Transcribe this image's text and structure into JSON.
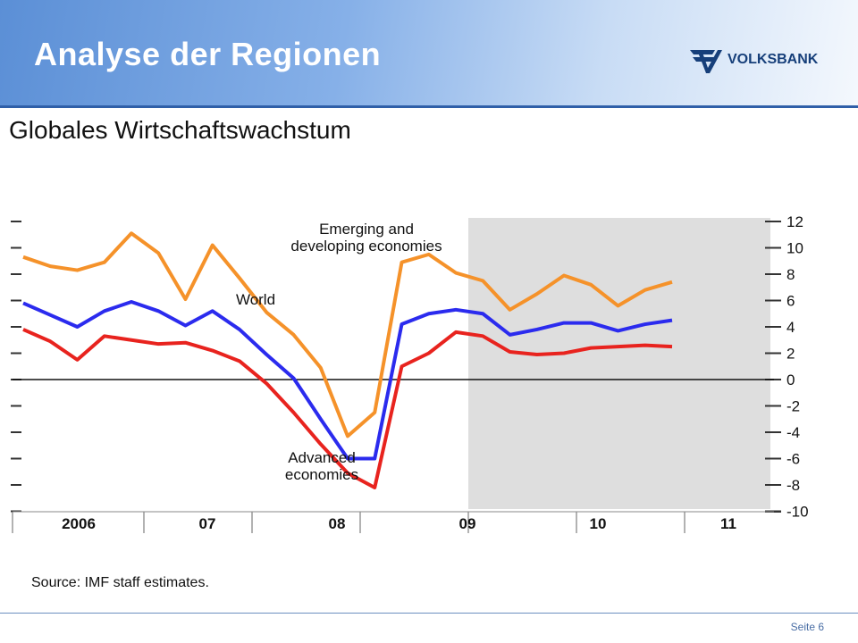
{
  "slide": {
    "title": "Analyse der Regionen",
    "subtitle": "Globales Wirtschaftswachstum",
    "logo_text": "VOLKSBANK",
    "page_label": "Seite 6"
  },
  "chart_data": {
    "type": "line",
    "title": "",
    "xlabel": "",
    "ylabel": "",
    "x_tick_labels": [
      "2006",
      "07",
      "08",
      "09",
      "10",
      "11"
    ],
    "y_ticks": [
      12,
      10,
      8,
      6,
      4,
      2,
      0,
      -2,
      -4,
      -6,
      -8,
      -10
    ],
    "ylim": [
      -10,
      12
    ],
    "x": [
      "2005Q4",
      "2006Q1",
      "2006Q2",
      "2006Q3",
      "2006Q4",
      "2007Q1",
      "2007Q2",
      "2007Q3",
      "2007Q4",
      "2008Q1",
      "2008Q2",
      "2008Q3",
      "2008Q4",
      "2009Q1",
      "2009Q2",
      "2009Q3",
      "2009Q4",
      "2010Q1",
      "2010Q2",
      "2010Q3",
      "2010Q4",
      "2011Q1",
      "2011Q2",
      "2011Q3",
      "2011Q4"
    ],
    "series": [
      {
        "name": "Emerging and developing economies",
        "color": "#f5922a",
        "values": [
          9.3,
          8.6,
          8.3,
          8.9,
          11.1,
          9.6,
          6.1,
          10.2,
          7.7,
          5.1,
          3.4,
          0.9,
          -4.3,
          -2.5,
          8.9,
          9.5,
          8.1,
          7.5,
          5.3,
          6.5,
          7.9,
          7.2,
          5.6,
          6.8,
          7.4
        ]
      },
      {
        "name": "World",
        "color": "#2b2bee",
        "values": [
          5.8,
          4.9,
          4.0,
          5.2,
          5.9,
          5.2,
          4.1,
          5.2,
          3.8,
          1.9,
          0.1,
          -3.0,
          -6.0,
          -6.0,
          4.2,
          5.0,
          5.3,
          5.0,
          3.4,
          3.8,
          4.3,
          4.3,
          3.7,
          4.2,
          4.5
        ]
      },
      {
        "name": "Advanced economies",
        "color": "#e8231e",
        "values": [
          3.8,
          2.9,
          1.5,
          3.3,
          3.0,
          2.7,
          2.8,
          2.2,
          1.4,
          -0.3,
          -2.5,
          -4.9,
          -7.1,
          -8.2,
          1.0,
          2.0,
          3.6,
          3.3,
          2.1,
          1.9,
          2.0,
          2.4,
          2.5,
          2.6,
          2.5
        ]
      }
    ],
    "annotations": [
      {
        "lines": [
          "Emerging and",
          "developing economies"
        ],
        "series": "Emerging and developing economies"
      },
      {
        "lines": [
          "World"
        ],
        "series": "World"
      },
      {
        "lines": [
          "Advanced",
          "economies"
        ],
        "series": "Advanced economies"
      }
    ],
    "shaded_region": {
      "from": "2009Q4",
      "to": "2011Q4",
      "meaning": "projection"
    },
    "zero_line": true,
    "grid": false,
    "legend": "none",
    "source_note": "Source: IMF staff estimates."
  }
}
